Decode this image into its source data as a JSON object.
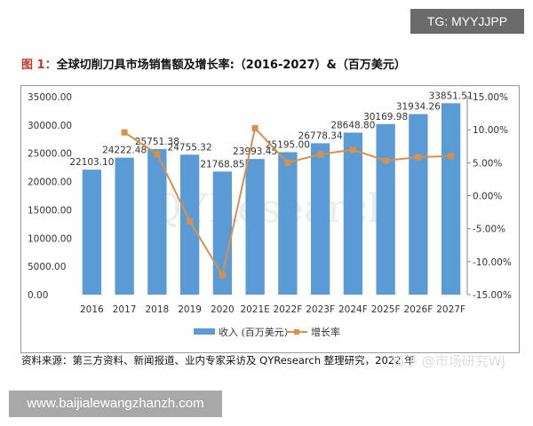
{
  "watermark_top": "TG: MYYJJPP",
  "title_prefix": "图 1：",
  "title": "全球切削刀具市场销售额及增长率:（2016-2027）&（百万美元）",
  "source": "资料来源：第三方资料、新闻报道、业内专家采访及 QYResearch 整理研究，2022 年",
  "watermark_zhihu": "知乎 @市场研究WJ",
  "watermark_chart": "QYResearch",
  "url": "www.baijialewangzhanzh.com",
  "chart_data": {
    "type": "bar+line",
    "categories": [
      "2016",
      "2017",
      "2018",
      "2019",
      "2020",
      "2021E",
      "2022F",
      "2023F",
      "2024F",
      "2025F",
      "2026F",
      "2027F"
    ],
    "series": [
      {
        "name": "收入 (百万美元)",
        "type": "bar",
        "axis": "left",
        "color": "#5b9bd5",
        "values": [
          22103.1,
          24222.48,
          25751.38,
          24755.32,
          21768.85,
          23993.45,
          25195.0,
          26778.34,
          28648.8,
          30169.98,
          31934.26,
          33851.51
        ],
        "labels": [
          "22103.10",
          "24222.48",
          "25751.38",
          "24755.32",
          "21768.85",
          "23993.45",
          "25195.00",
          "26778.34",
          "28648.80",
          "30169.98",
          "31934.26",
          "33851.51"
        ]
      },
      {
        "name": "增长率",
        "type": "line",
        "axis": "right",
        "color": "#d9904a",
        "values": [
          null,
          9.59,
          6.31,
          -3.87,
          -12.06,
          10.22,
          5.01,
          6.28,
          6.98,
          5.31,
          5.85,
          6.0
        ]
      }
    ],
    "y_left": {
      "min": 0,
      "max": 35000,
      "ticks": [
        "0.00",
        "5000.00",
        "10000.00",
        "15000.00",
        "20000.00",
        "25000.00",
        "30000.00",
        "35000.00"
      ]
    },
    "y_right": {
      "min": -15,
      "max": 15,
      "ticks": [
        "-15.00%",
        "-10.00%",
        "-5.00%",
        "0.00%",
        "5.00%",
        "10.00%",
        "15.00%"
      ]
    },
    "grid": false,
    "legend": "bottom"
  }
}
